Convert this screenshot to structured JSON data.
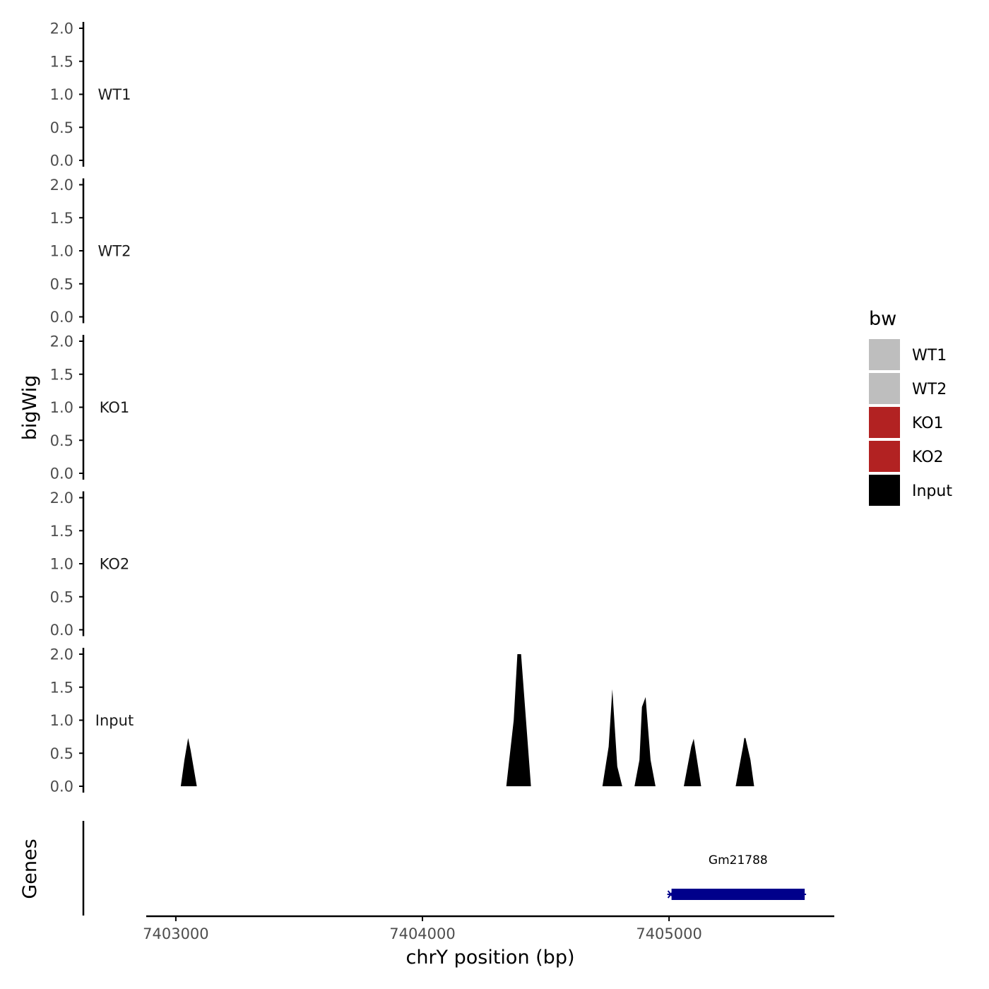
{
  "chart_data": {
    "type": "area",
    "xlabel": "chrY position (bp)",
    "ylabel": "bigWig",
    "genes_label": "Genes",
    "x_ticks": [
      7403000,
      7404000,
      7405000
    ],
    "x_tick_labels": [
      "7403000",
      "7404000",
      "7405000"
    ],
    "xlim": [
      7402880,
      7405670
    ],
    "ylim": [
      0,
      2
    ],
    "y_ticks": [
      0,
      0.5,
      1,
      1.5,
      2
    ],
    "y_tick_labels": [
      "0.0",
      "0.5",
      "1.0",
      "1.5",
      "2.0"
    ],
    "tracks": [
      {
        "name": "WT1",
        "color": "#bebebe",
        "points": []
      },
      {
        "name": "WT2",
        "color": "#bebebe",
        "points": []
      },
      {
        "name": "KO1",
        "color": "#b22222",
        "points": []
      },
      {
        "name": "KO2",
        "color": "#b22222",
        "points": []
      },
      {
        "name": "Input",
        "color": "#000000",
        "points": [
          [
            7403020,
            0
          ],
          [
            7403035,
            0.4
          ],
          [
            7403050,
            0.73
          ],
          [
            7403060,
            0.55
          ],
          [
            7403085,
            0
          ],
          [
            7404340,
            0
          ],
          [
            7404370,
            1.0
          ],
          [
            7404385,
            2.0
          ],
          [
            7404400,
            2.0
          ],
          [
            7404420,
            1.0
          ],
          [
            7404440,
            0
          ],
          [
            7404730,
            0
          ],
          [
            7404755,
            0.6
          ],
          [
            7404770,
            1.47
          ],
          [
            7404790,
            0.3
          ],
          [
            7404810,
            0
          ],
          [
            7404860,
            0
          ],
          [
            7404880,
            0.4
          ],
          [
            7404890,
            1.2
          ],
          [
            7404905,
            1.35
          ],
          [
            7404925,
            0.4
          ],
          [
            7404945,
            0
          ],
          [
            7405060,
            0
          ],
          [
            7405090,
            0.6
          ],
          [
            7405100,
            0.72
          ],
          [
            7405130,
            0
          ],
          [
            7405270,
            0
          ],
          [
            7405300,
            0.6
          ],
          [
            7405305,
            0.73
          ],
          [
            7405310,
            0.73
          ],
          [
            7405330,
            0.4
          ],
          [
            7405345,
            0
          ]
        ]
      }
    ],
    "legend": {
      "title": "bw",
      "position": "right",
      "entries": [
        {
          "label": "WT1",
          "color": "#bebebe"
        },
        {
          "label": "WT2",
          "color": "#bebebe"
        },
        {
          "label": "KO1",
          "color": "#b22222"
        },
        {
          "label": "KO2",
          "color": "#b22222"
        },
        {
          "label": "Input",
          "color": "#000000"
        }
      ]
    },
    "genes": [
      {
        "name": "Gm21788",
        "start": 7405010,
        "end": 7405550,
        "strand": "-",
        "color": "#00008b"
      }
    ],
    "grid": false
  }
}
